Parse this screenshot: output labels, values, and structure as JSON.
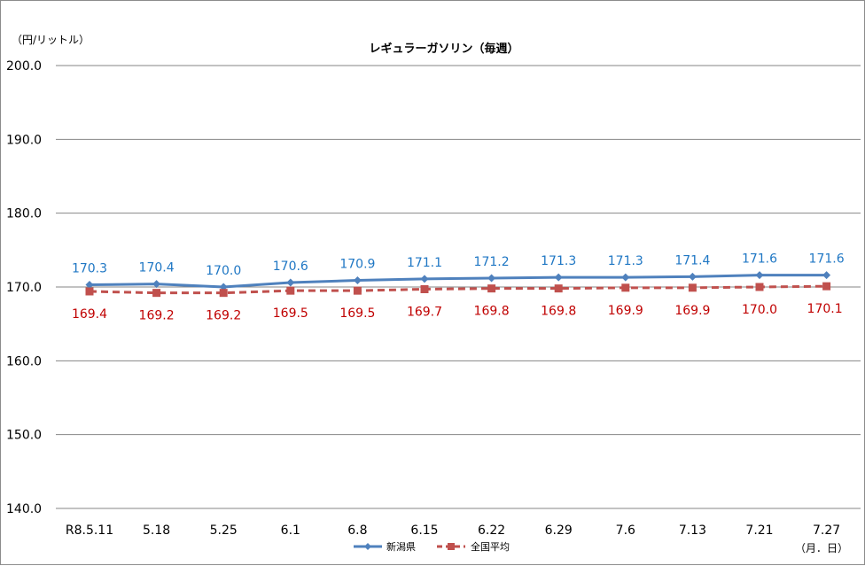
{
  "chart_data": {
    "type": "line",
    "title": "レギュラーガソリン（毎週）",
    "y_unit_label": "（円/リットル）",
    "x_unit_label": "（月．日）",
    "categories": [
      "R8.5.11",
      "5.18",
      "5.25",
      "6.1",
      "6.8",
      "6.15",
      "6.22",
      "6.29",
      "7.6",
      "7.13",
      "7.21",
      "7.27"
    ],
    "ylim": [
      140,
      200
    ],
    "yticks": [
      "140.0",
      "150.0",
      "160.0",
      "170.0",
      "180.0",
      "190.0",
      "200.0"
    ],
    "grid": true,
    "legend_placement": "bottom",
    "series": [
      {
        "name": "新潟県",
        "color": "#4f81bd",
        "label_color": "#1f77c4",
        "marker": "diamond",
        "line_style": "solid",
        "values": [
          170.3,
          170.4,
          170.0,
          170.6,
          170.9,
          171.1,
          171.2,
          171.3,
          171.3,
          171.4,
          171.6,
          171.6
        ],
        "labels": [
          "170.3",
          "170.4",
          "170.0",
          "170.6",
          "170.9",
          "171.1",
          "171.2",
          "171.3",
          "171.3",
          "171.4",
          "171.6",
          "171.6"
        ]
      },
      {
        "name": "全国平均",
        "color": "#c0504d",
        "label_color": "#c00000",
        "marker": "square",
        "line_style": "dashed",
        "values": [
          169.4,
          169.2,
          169.2,
          169.5,
          169.5,
          169.7,
          169.8,
          169.8,
          169.9,
          169.9,
          170.0,
          170.1
        ],
        "labels": [
          "169.4",
          "169.2",
          "169.2",
          "169.5",
          "169.5",
          "169.7",
          "169.8",
          "169.8",
          "169.9",
          "169.9",
          "170.0",
          "170.1"
        ]
      }
    ]
  }
}
